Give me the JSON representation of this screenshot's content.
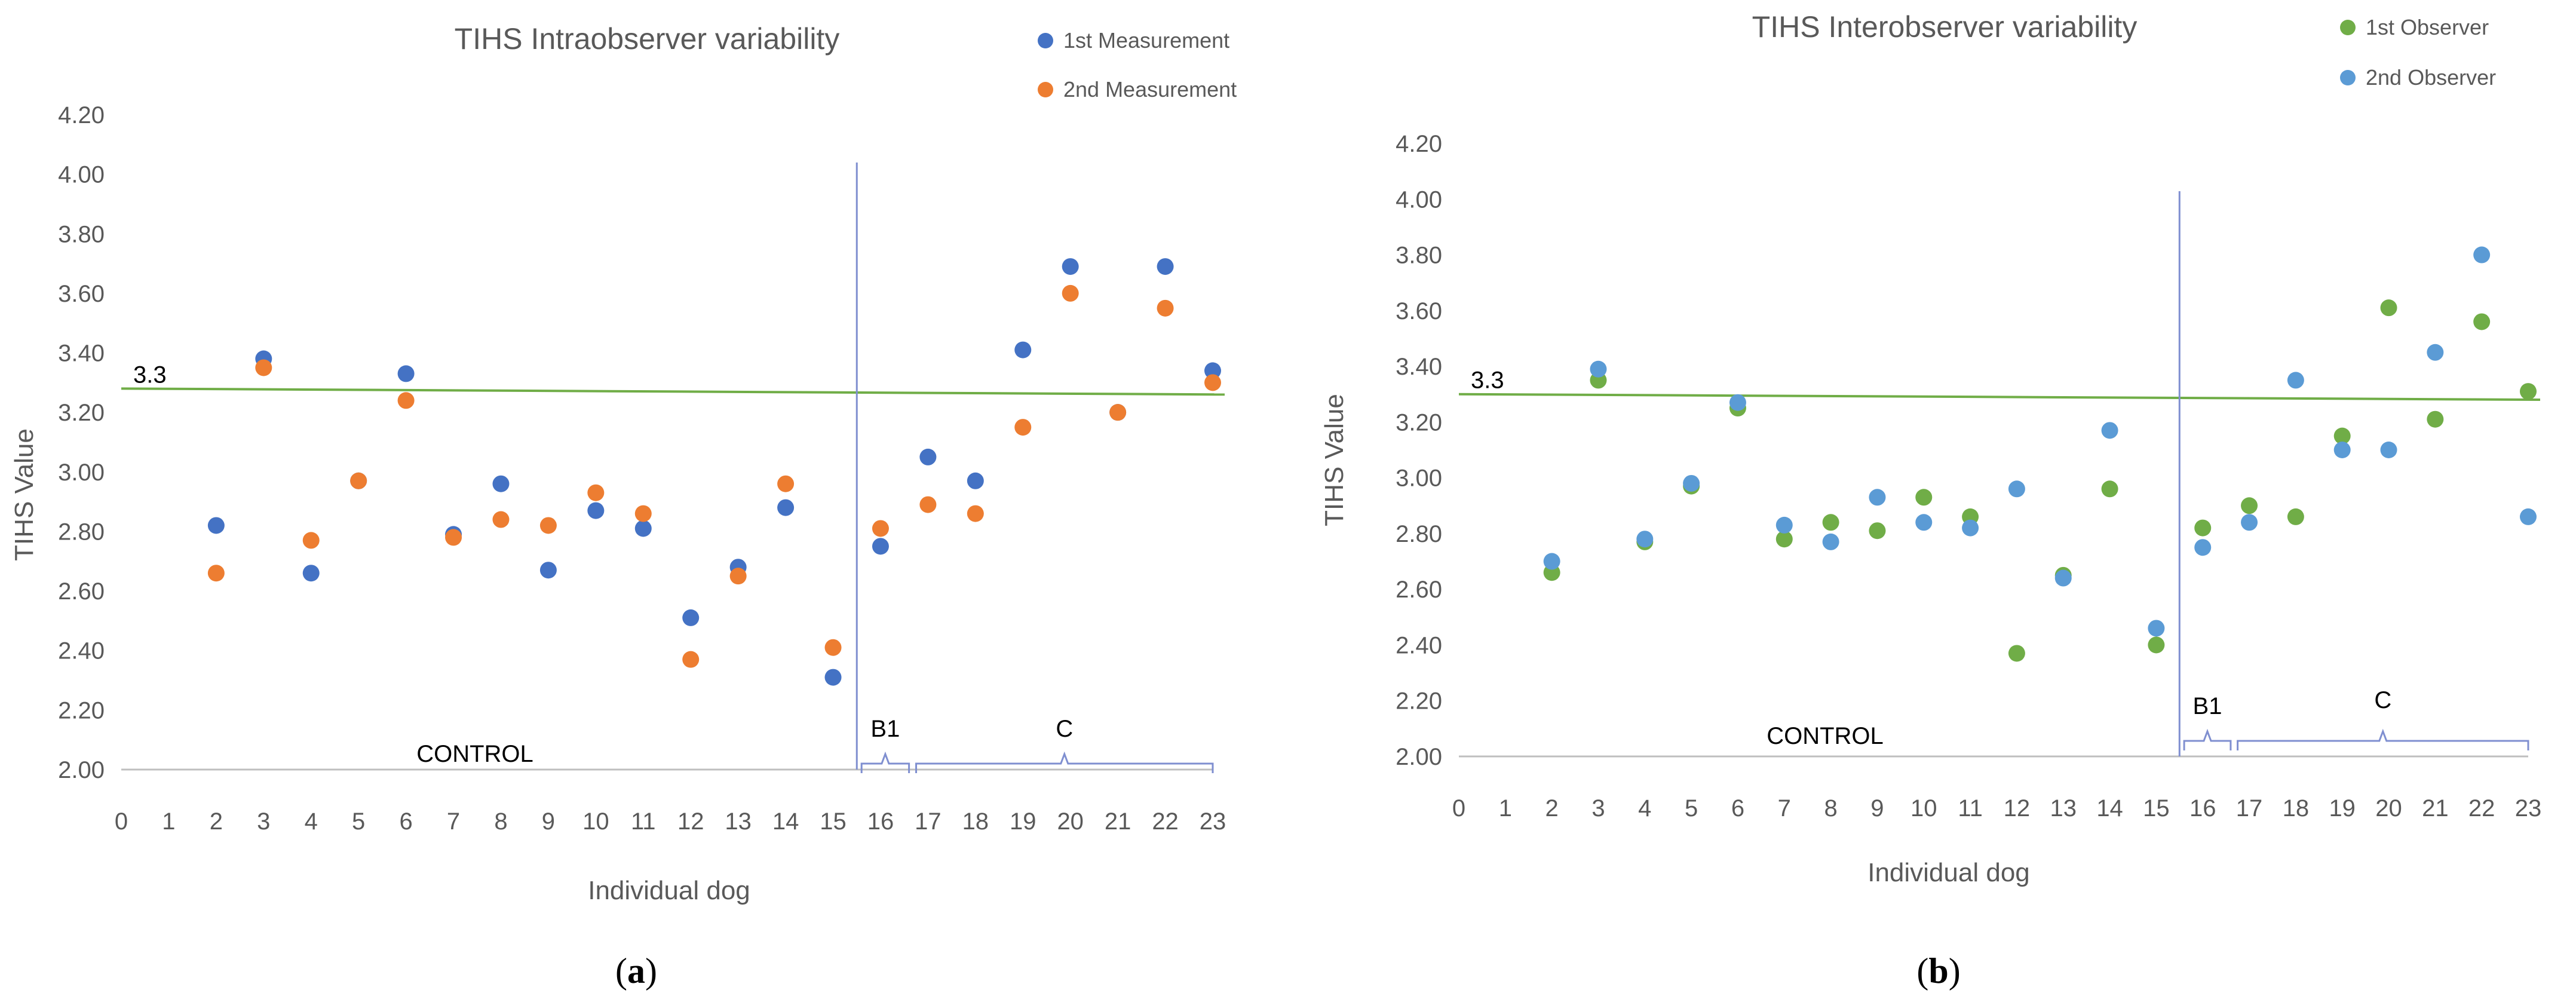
{
  "chart_data": [
    {
      "type": "scatter",
      "title": "TIHS Intraobserver variability",
      "xlabel": "Individual dog",
      "ylabel": "TIHS Value",
      "xlim": [
        0,
        23
      ],
      "ylim": [
        2.0,
        4.2
      ],
      "x_ticks": [
        "0",
        "1",
        "2",
        "3",
        "4",
        "5",
        "6",
        "7",
        "8",
        "9",
        "10",
        "11",
        "12",
        "13",
        "14",
        "15",
        "16",
        "17",
        "18",
        "19",
        "20",
        "21",
        "22",
        "23"
      ],
      "y_ticks": [
        "2.00",
        "2.20",
        "2.40",
        "2.60",
        "2.80",
        "3.00",
        "3.20",
        "3.40",
        "3.60",
        "3.80",
        "4.00",
        "4.20"
      ],
      "grid": false,
      "legend_position": "top-right",
      "caption": "a",
      "threshold": {
        "value": 3.3,
        "label": "3.3",
        "color": "#70ad47"
      },
      "group_divider_x": 15.5,
      "groups": [
        {
          "label": "CONTROL",
          "bracket": false
        },
        {
          "label": "B1",
          "bracket": true,
          "from": 15.6,
          "to": 16.6
        },
        {
          "label": "C",
          "bracket": true,
          "from": 16.75,
          "to": 23
        }
      ],
      "series": [
        {
          "name": "1st Measurement",
          "color": "#4472c4",
          "x": [
            2,
            3,
            4,
            5,
            6,
            7,
            8,
            9,
            10,
            11,
            12,
            13,
            14,
            15,
            16,
            17,
            18,
            19,
            20,
            21,
            22,
            23
          ],
          "y": [
            2.82,
            3.38,
            2.66,
            2.97,
            3.33,
            2.79,
            2.96,
            2.67,
            2.87,
            2.81,
            2.51,
            2.68,
            2.88,
            2.31,
            2.75,
            3.05,
            2.97,
            3.41,
            3.69,
            3.2,
            3.69,
            3.34
          ]
        },
        {
          "name": "2nd Measurement",
          "color": "#ed7d31",
          "x": [
            2,
            3,
            4,
            5,
            6,
            7,
            8,
            9,
            10,
            11,
            12,
            13,
            14,
            15,
            16,
            17,
            18,
            19,
            20,
            21,
            22,
            23
          ],
          "y": [
            2.66,
            3.35,
            2.77,
            2.97,
            3.24,
            2.78,
            2.84,
            2.82,
            2.93,
            2.86,
            2.37,
            2.65,
            2.96,
            2.41,
            2.81,
            2.89,
            2.86,
            3.15,
            3.6,
            3.2,
            3.55,
            3.3
          ]
        }
      ]
    },
    {
      "type": "scatter",
      "title": "TIHS Interobserver variability",
      "xlabel": "Individual dog",
      "ylabel": "TIHS Value",
      "xlim": [
        0,
        23
      ],
      "ylim": [
        2.0,
        4.2
      ],
      "x_ticks": [
        "0",
        "1",
        "2",
        "3",
        "4",
        "5",
        "6",
        "7",
        "8",
        "9",
        "10",
        "11",
        "12",
        "13",
        "14",
        "15",
        "16",
        "17",
        "18",
        "19",
        "20",
        "21",
        "22",
        "23"
      ],
      "y_ticks": [
        "2.00",
        "2.20",
        "2.40",
        "2.60",
        "2.80",
        "3.00",
        "3.20",
        "3.40",
        "3.60",
        "3.80",
        "4.00",
        "4.20"
      ],
      "grid": false,
      "legend_position": "top-right",
      "caption": "b",
      "threshold": {
        "value": 3.3,
        "label": "3.3",
        "color": "#70ad47"
      },
      "group_divider_x": 15.5,
      "groups": [
        {
          "label": "CONTROL",
          "bracket": false
        },
        {
          "label": "B1",
          "bracket": true,
          "from": 15.6,
          "to": 16.6
        },
        {
          "label": "C",
          "bracket": true,
          "from": 16.75,
          "to": 23
        }
      ],
      "series": [
        {
          "name": "1st Observer",
          "color": "#70ad47",
          "x": [
            2,
            3,
            4,
            5,
            6,
            7,
            8,
            9,
            10,
            11,
            12,
            13,
            14,
            15,
            16,
            17,
            18,
            19,
            20,
            21,
            22,
            23
          ],
          "y": [
            2.66,
            3.35,
            2.77,
            2.97,
            3.25,
            2.78,
            2.84,
            2.81,
            2.93,
            2.86,
            2.37,
            2.65,
            2.96,
            2.4,
            2.82,
            2.9,
            2.86,
            3.15,
            3.61,
            3.21,
            3.56,
            3.31
          ]
        },
        {
          "name": "2nd Observer",
          "color": "#5b9bd5",
          "x": [
            2,
            3,
            4,
            5,
            6,
            7,
            8,
            9,
            10,
            11,
            12,
            13,
            14,
            15,
            16,
            17,
            18,
            19,
            20,
            21,
            22,
            23
          ],
          "y": [
            2.7,
            3.39,
            2.78,
            2.98,
            3.27,
            2.83,
            2.77,
            2.93,
            2.84,
            2.82,
            2.96,
            2.64,
            3.17,
            2.46,
            2.75,
            2.84,
            3.35,
            3.1,
            3.1,
            3.45,
            3.8,
            2.86
          ]
        }
      ]
    }
  ]
}
